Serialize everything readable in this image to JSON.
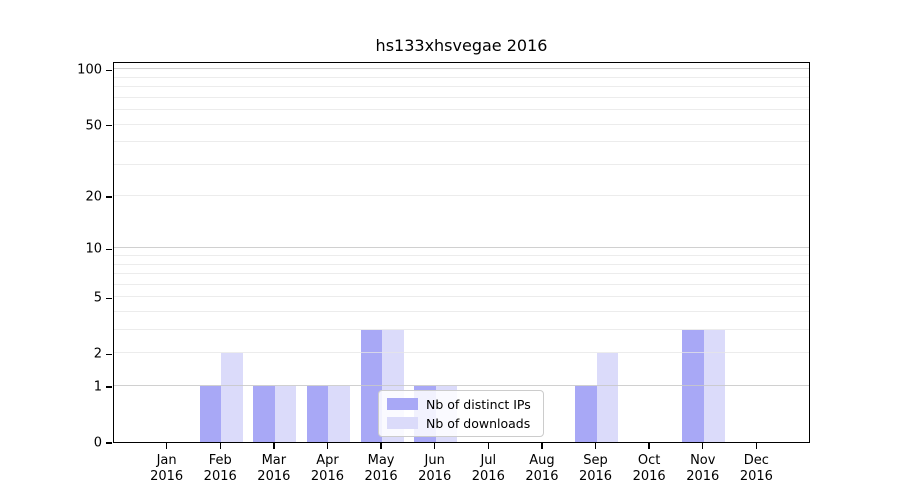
{
  "title": "hs133xhsvegae 2016",
  "chart_data": {
    "type": "bar",
    "title": "hs133xhsvegae 2016",
    "categories": [
      {
        "month": "Jan",
        "year": "2016"
      },
      {
        "month": "Feb",
        "year": "2016"
      },
      {
        "month": "Mar",
        "year": "2016"
      },
      {
        "month": "Apr",
        "year": "2016"
      },
      {
        "month": "May",
        "year": "2016"
      },
      {
        "month": "Jun",
        "year": "2016"
      },
      {
        "month": "Jul",
        "year": "2016"
      },
      {
        "month": "Aug",
        "year": "2016"
      },
      {
        "month": "Sep",
        "year": "2016"
      },
      {
        "month": "Oct",
        "year": "2016"
      },
      {
        "month": "Nov",
        "year": "2016"
      },
      {
        "month": "Dec",
        "year": "2016"
      }
    ],
    "series": [
      {
        "name": "Nb of distinct IPs",
        "color": "#a8a8f6",
        "values": [
          0,
          1,
          1,
          1,
          3,
          1,
          0,
          0,
          1,
          0,
          3,
          0
        ]
      },
      {
        "name": "Nb of downloads",
        "color": "#dbdbfa",
        "values": [
          0,
          2,
          1,
          1,
          3,
          1,
          0,
          0,
          2,
          0,
          3,
          0
        ]
      }
    ],
    "xlabel": "",
    "ylabel": "",
    "yscale": "log1p",
    "ylim": [
      0,
      111
    ],
    "yticks": [
      0,
      1,
      2,
      5,
      10,
      20,
      50,
      100
    ],
    "major_grid_values": [
      1,
      10,
      100
    ],
    "minor_grid_values": [
      3,
      4,
      6,
      7,
      8,
      9,
      30,
      40,
      60,
      70,
      80,
      90
    ],
    "grid": "horizontal",
    "legend_position": "lower-right-inside"
  },
  "legend": {
    "items": [
      {
        "label": "Nb of distinct IPs",
        "color": "#a8a8f6"
      },
      {
        "label": "Nb of downloads",
        "color": "#dbdbfa"
      }
    ]
  },
  "colors": {
    "distinct_ips": "#a8a8f6",
    "downloads": "#dbdbfa",
    "grid_major": "#c8c8c8",
    "grid_minor": "#e6e6e6",
    "axis": "#000000",
    "background": "#ffffff"
  }
}
